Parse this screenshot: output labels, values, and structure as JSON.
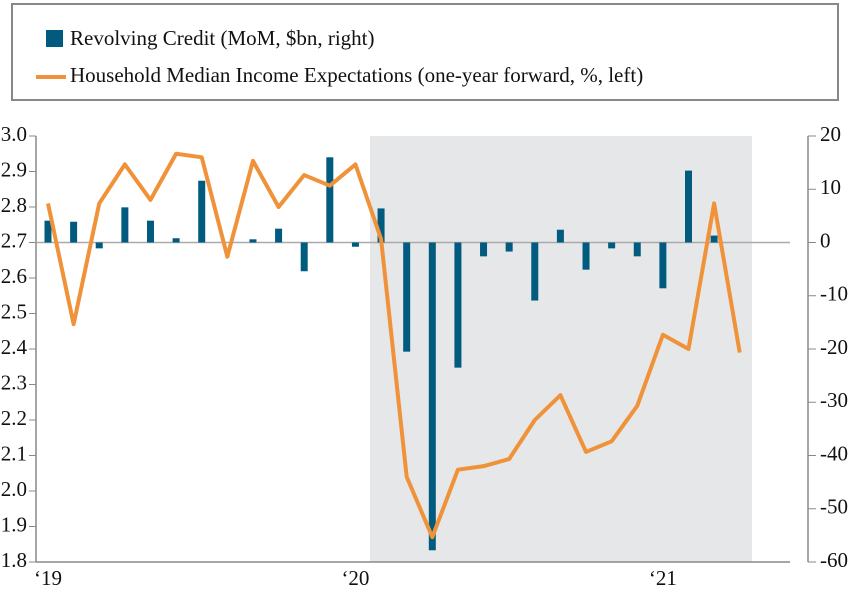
{
  "chart_data": {
    "type": "bar-line",
    "categories": [
      "‘19",
      null,
      null,
      null,
      null,
      null,
      null,
      null,
      null,
      null,
      null,
      null,
      "‘20",
      null,
      null,
      null,
      null,
      null,
      null,
      null,
      null,
      null,
      null,
      null,
      "‘21",
      null,
      null,
      null
    ],
    "series": [
      {
        "name": "Revolving Credit (MoM, $bn, right)",
        "type": "bar",
        "axis": "y2",
        "color": "#005b7f",
        "values": [
          4.1,
          3.9,
          -1.1,
          6.6,
          4.1,
          0.8,
          11.6,
          0,
          0.6,
          2.6,
          -5.4,
          16.0,
          -0.8,
          6.4,
          -20.5,
          -57.8,
          -23.5,
          -2.6,
          -1.7,
          -10.9,
          2.4,
          -5.1,
          -1.1,
          -2.6,
          -8.6,
          13.5,
          1.3,
          null
        ]
      },
      {
        "name": "Household Median Income Expectations (one-year forward, %, left)",
        "type": "line",
        "axis": "y",
        "color": "#f0923a",
        "values": [
          2.81,
          2.47,
          2.81,
          2.92,
          2.82,
          2.95,
          2.94,
          2.66,
          2.93,
          2.8,
          2.89,
          2.86,
          2.92,
          2.71,
          2.04,
          1.87,
          2.06,
          2.07,
          2.09,
          2.2,
          2.27,
          2.11,
          2.14,
          2.24,
          2.44,
          2.4,
          2.81,
          2.39
        ]
      }
    ],
    "ylim": [
      1.8,
      3.0
    ],
    "yticks": [
      {
        "value": 3.0,
        "label": "3.0"
      },
      2.9,
      2.8,
      2.7,
      2.6,
      2.5,
      2.4,
      2.3,
      2.2,
      2.1,
      {
        "value": 2.0,
        "label": "2.0"
      },
      1.9,
      1.8
    ],
    "y2lim": [
      -60,
      20
    ],
    "y2ticks": [
      20,
      10,
      0,
      -10,
      -20,
      -30,
      -40,
      -50,
      -60
    ]
  }
}
